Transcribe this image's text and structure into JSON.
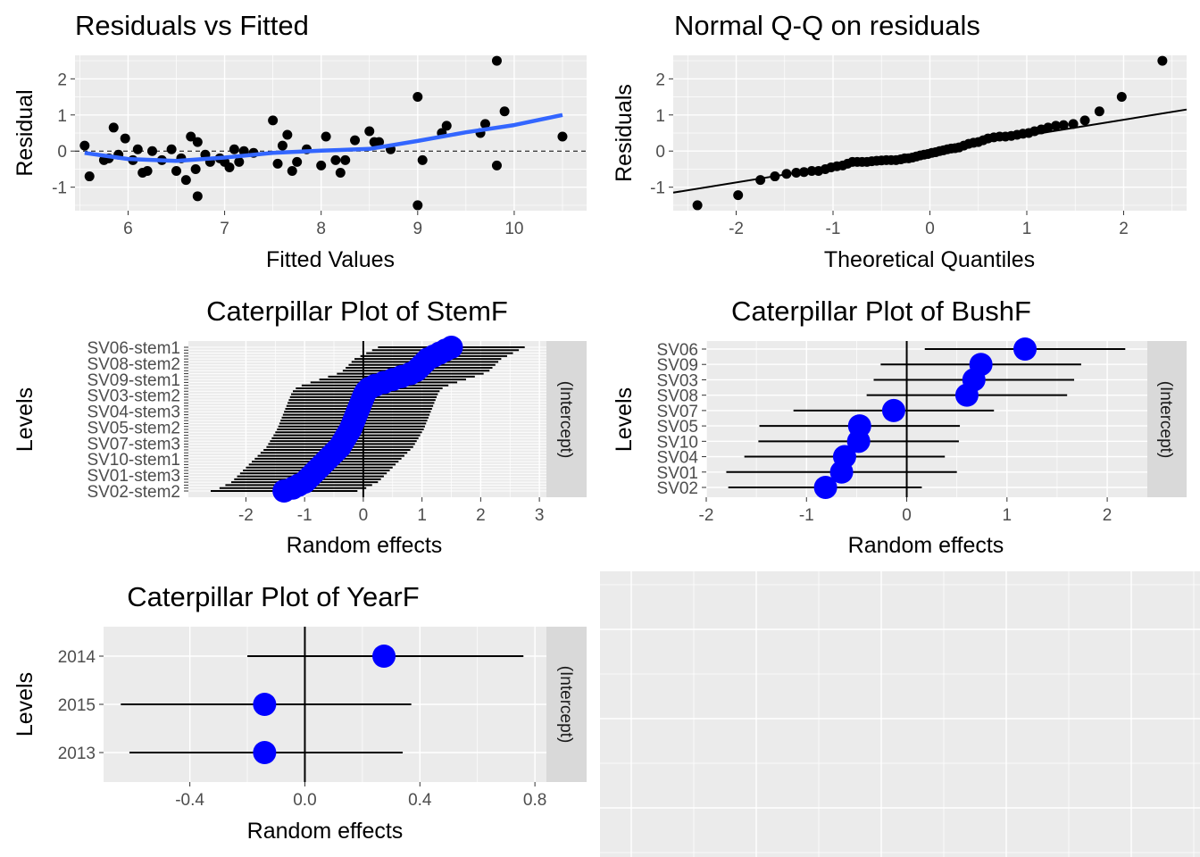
{
  "chart_data": [
    {
      "id": "resid",
      "type": "scatter",
      "title": "Residuals vs Fitted",
      "xlabel": "Fitted Values",
      "ylabel": "Residual",
      "xlim": [
        5.45,
        10.75
      ],
      "ylim": [
        -1.65,
        2.65
      ],
      "xticks": [
        6,
        7,
        8,
        9,
        10
      ],
      "yticks": [
        -1,
        0,
        1,
        2
      ],
      "ytick_labels": [
        "-1",
        "0",
        "1",
        "2"
      ],
      "points": [
        [
          5.55,
          0.15
        ],
        [
          5.6,
          -0.7
        ],
        [
          5.75,
          -0.25
        ],
        [
          5.8,
          -0.2
        ],
        [
          5.85,
          0.65
        ],
        [
          5.9,
          -0.1
        ],
        [
          5.97,
          0.35
        ],
        [
          6.05,
          -0.25
        ],
        [
          6.1,
          0.05
        ],
        [
          6.15,
          -0.6
        ],
        [
          6.2,
          -0.55
        ],
        [
          6.25,
          0.0
        ],
        [
          6.35,
          -0.25
        ],
        [
          6.45,
          0.05
        ],
        [
          6.5,
          -0.55
        ],
        [
          6.55,
          -0.2
        ],
        [
          6.6,
          -0.8
        ],
        [
          6.65,
          0.4
        ],
        [
          6.7,
          -0.5
        ],
        [
          6.72,
          0.25
        ],
        [
          6.72,
          -1.25
        ],
        [
          6.8,
          -0.1
        ],
        [
          6.85,
          -0.3
        ],
        [
          6.95,
          -0.2
        ],
        [
          7.0,
          -0.3
        ],
        [
          7.05,
          -0.45
        ],
        [
          7.1,
          0.05
        ],
        [
          7.15,
          -0.3
        ],
        [
          7.2,
          0.0
        ],
        [
          7.3,
          -0.05
        ],
        [
          7.5,
          0.85
        ],
        [
          7.55,
          -0.35
        ],
        [
          7.6,
          0.15
        ],
        [
          7.65,
          0.45
        ],
        [
          7.7,
          -0.55
        ],
        [
          7.75,
          -0.3
        ],
        [
          7.85,
          0.05
        ],
        [
          8.0,
          -0.4
        ],
        [
          8.05,
          0.4
        ],
        [
          8.15,
          -0.25
        ],
        [
          8.2,
          -0.6
        ],
        [
          8.25,
          -0.25
        ],
        [
          8.35,
          0.3
        ],
        [
          8.5,
          0.55
        ],
        [
          8.55,
          0.25
        ],
        [
          8.6,
          0.25
        ],
        [
          8.72,
          0.05
        ],
        [
          9.0,
          -1.5
        ],
        [
          9.0,
          1.5
        ],
        [
          9.05,
          -0.25
        ],
        [
          9.25,
          0.5
        ],
        [
          9.3,
          0.7
        ],
        [
          9.65,
          0.5
        ],
        [
          9.7,
          0.75
        ],
        [
          9.82,
          2.5
        ],
        [
          9.82,
          -0.4
        ],
        [
          9.9,
          1.1
        ],
        [
          10.5,
          0.4
        ]
      ],
      "smooth": [
        [
          5.55,
          -0.05
        ],
        [
          6.0,
          -0.22
        ],
        [
          6.5,
          -0.27
        ],
        [
          7.0,
          -0.18
        ],
        [
          7.5,
          -0.05
        ],
        [
          8.0,
          0.01
        ],
        [
          8.5,
          0.06
        ],
        [
          9.0,
          0.28
        ],
        [
          9.5,
          0.52
        ],
        [
          10.0,
          0.72
        ],
        [
          10.5,
          1.0
        ]
      ],
      "hline": 0
    },
    {
      "id": "qq",
      "type": "scatter",
      "title": "Normal Q-Q on residuals",
      "xlabel": "Theoretical Quantiles",
      "ylabel": "Residuals",
      "xlim": [
        -2.65,
        2.65
      ],
      "ylim": [
        -1.65,
        2.65
      ],
      "xticks": [
        -2,
        -1,
        0,
        1,
        2
      ],
      "yticks": [
        -1,
        0,
        1,
        2
      ],
      "xtick_labels": [
        "-2",
        "-1",
        "0",
        "1",
        "2"
      ],
      "ytick_labels": [
        "-1",
        "0",
        "1",
        "2"
      ],
      "points": [
        [
          -2.4,
          -1.5
        ],
        [
          -1.98,
          -1.22
        ],
        [
          -1.75,
          -0.8
        ],
        [
          -1.6,
          -0.7
        ],
        [
          -1.48,
          -0.63
        ],
        [
          -1.38,
          -0.6
        ],
        [
          -1.3,
          -0.58
        ],
        [
          -1.22,
          -0.55
        ],
        [
          -1.15,
          -0.55
        ],
        [
          -1.08,
          -0.5
        ],
        [
          -1.02,
          -0.45
        ],
        [
          -0.96,
          -0.42
        ],
        [
          -0.9,
          -0.4
        ],
        [
          -0.85,
          -0.35
        ],
        [
          -0.8,
          -0.3
        ],
        [
          -0.75,
          -0.3
        ],
        [
          -0.7,
          -0.3
        ],
        [
          -0.65,
          -0.3
        ],
        [
          -0.6,
          -0.28
        ],
        [
          -0.55,
          -0.27
        ],
        [
          -0.5,
          -0.26
        ],
        [
          -0.45,
          -0.25
        ],
        [
          -0.4,
          -0.25
        ],
        [
          -0.35,
          -0.25
        ],
        [
          -0.3,
          -0.23
        ],
        [
          -0.26,
          -0.2
        ],
        [
          -0.22,
          -0.2
        ],
        [
          -0.18,
          -0.18
        ],
        [
          -0.14,
          -0.15
        ],
        [
          -0.1,
          -0.12
        ],
        [
          -0.06,
          -0.1
        ],
        [
          -0.02,
          -0.08
        ],
        [
          0.02,
          -0.05
        ],
        [
          0.06,
          -0.03
        ],
        [
          0.1,
          0.0
        ],
        [
          0.14,
          0.02
        ],
        [
          0.18,
          0.05
        ],
        [
          0.22,
          0.07
        ],
        [
          0.26,
          0.08
        ],
        [
          0.3,
          0.1
        ],
        [
          0.35,
          0.15
        ],
        [
          0.4,
          0.2
        ],
        [
          0.45,
          0.23
        ],
        [
          0.5,
          0.25
        ],
        [
          0.55,
          0.3
        ],
        [
          0.6,
          0.35
        ],
        [
          0.66,
          0.38
        ],
        [
          0.72,
          0.4
        ],
        [
          0.78,
          0.4
        ],
        [
          0.84,
          0.42
        ],
        [
          0.9,
          0.45
        ],
        [
          0.96,
          0.48
        ],
        [
          1.02,
          0.5
        ],
        [
          1.08,
          0.55
        ],
        [
          1.15,
          0.6
        ],
        [
          1.22,
          0.65
        ],
        [
          1.3,
          0.7
        ],
        [
          1.38,
          0.72
        ],
        [
          1.48,
          0.75
        ],
        [
          1.6,
          0.85
        ],
        [
          1.75,
          1.1
        ],
        [
          1.98,
          1.5
        ],
        [
          2.4,
          2.5
        ]
      ],
      "refline": [
        [
          -2.65,
          -1.15
        ],
        [
          2.65,
          1.15
        ]
      ]
    },
    {
      "id": "stem",
      "type": "caterpillar",
      "title": "Caterpillar Plot of  StemF",
      "xlabel": "Random effects",
      "ylabel": "Levels",
      "strip": "(Intercept)",
      "xlim": [
        -2.98,
        3.12
      ],
      "xticks": [
        -2,
        -1,
        0,
        1,
        2,
        3
      ],
      "xtick_labels": [
        "-2",
        "-1",
        "0",
        "1",
        "2",
        "3"
      ],
      "n_levels": 50,
      "visible_labels": [
        "SV06-stem1",
        "SV08-stem2",
        "SV09-stem1",
        "SV03-stem2",
        "SV04-stem3",
        "SV05-stem2",
        "SV07-stem3",
        "SV10-stem1",
        "SV01-stem3",
        "SV02-stem2"
      ],
      "effects": [
        -1.35,
        -1.2,
        -1.1,
        -1.0,
        -0.95,
        -0.9,
        -0.85,
        -0.8,
        -0.75,
        -0.7,
        -0.65,
        -0.6,
        -0.55,
        -0.5,
        -0.45,
        -0.4,
        -0.37,
        -0.34,
        -0.31,
        -0.28,
        -0.25,
        -0.22,
        -0.2,
        -0.18,
        -0.16,
        -0.14,
        -0.12,
        -0.1,
        -0.08,
        -0.06,
        -0.04,
        -0.02,
        0.0,
        0.02,
        0.05,
        0.1,
        0.2,
        0.35,
        0.5,
        0.65,
        0.8,
        0.9,
        0.95,
        1.0,
        1.05,
        1.1,
        1.2,
        1.3,
        1.4,
        1.5
      ],
      "ci_half": 1.25
    },
    {
      "id": "bush",
      "type": "caterpillar",
      "title": "Caterpillar Plot of  BushF",
      "xlabel": "Random effects",
      "ylabel": "Levels",
      "strip": "(Intercept)",
      "xlim": [
        -2.0,
        2.4
      ],
      "xticks": [
        -2,
        -1,
        0,
        1,
        2
      ],
      "xtick_labels": [
        "-2",
        "-1",
        "0",
        "1",
        "2"
      ],
      "categories": [
        "SV06",
        "SV09",
        "SV03",
        "SV08",
        "SV07",
        "SV05",
        "SV10",
        "SV04",
        "SV01",
        "SV02"
      ],
      "effects": [
        1.18,
        0.74,
        0.67,
        0.6,
        -0.13,
        -0.47,
        -0.48,
        -0.62,
        -0.65,
        -0.81
      ],
      "lower": [
        0.18,
        -0.26,
        -0.33,
        -0.4,
        -1.13,
        -1.47,
        -1.48,
        -1.62,
        -1.8,
        -1.78
      ],
      "upper": [
        2.18,
        1.74,
        1.67,
        1.6,
        0.87,
        0.53,
        0.52,
        0.38,
        0.5,
        0.15
      ]
    },
    {
      "id": "year",
      "type": "caterpillar",
      "title": "Caterpillar Plot of  YearF",
      "xlabel": "Random effects",
      "ylabel": "Levels",
      "strip": "(Intercept)",
      "xlim": [
        -0.7,
        0.84
      ],
      "xticks": [
        -0.4,
        0.0,
        0.4,
        0.8
      ],
      "xtick_labels": [
        "-0.4",
        "0.0",
        "0.4",
        "0.8"
      ],
      "categories": [
        "2014",
        "2015",
        "2013"
      ],
      "effects": [
        0.275,
        -0.14,
        -0.14
      ],
      "lower": [
        -0.2,
        -0.64,
        -0.61
      ],
      "upper": [
        0.76,
        0.37,
        0.34
      ]
    }
  ]
}
